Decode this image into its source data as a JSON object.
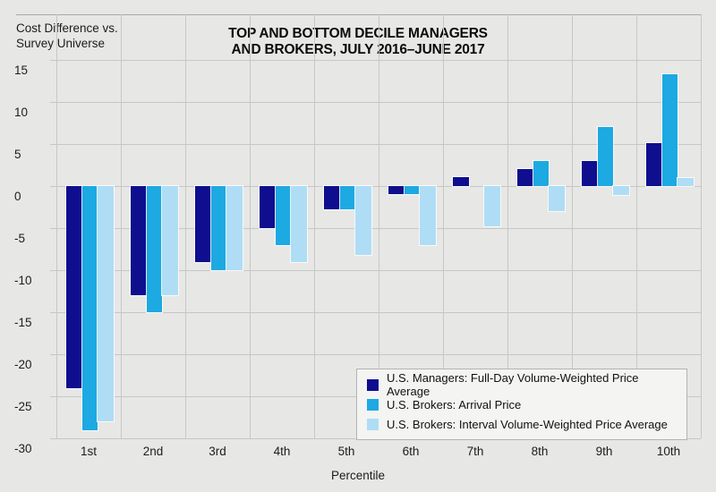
{
  "header": {
    "y_axis_caption_line1": "Cost Difference vs.",
    "y_axis_caption_line2": "Survey Universe"
  },
  "colors": {
    "background": "#e7e7e5",
    "gridline": "#c7c7c5",
    "top_rule": "#a9a9a7",
    "legend_background": "#f4f4f2",
    "legend_border": "#b3b3b1",
    "text": "#1c1c1c"
  },
  "chart_data": {
    "type": "bar",
    "title": "TOP AND BOTTOM DECILE MANAGERS AND BROKERS, JULY 2016–JUNE 2017",
    "title_lines": [
      "TOP AND BOTTOM DECILE MANAGERS",
      "AND BROKERS, JULY 2016–JUNE 2017"
    ],
    "ylabel": "Cost Difference vs. Survey Universe",
    "xlabel": "Percentile",
    "ylim": [
      -30,
      15
    ],
    "ytick_step": 5,
    "y_ticks": [
      15,
      10,
      5,
      0,
      -5,
      -10,
      -15,
      -20,
      -25,
      -30
    ],
    "y_tick_labels": [
      "15",
      "10",
      "5",
      "0",
      "-5",
      "-10",
      "-15",
      "-20",
      "-25",
      "-30"
    ],
    "grid": true,
    "legend_position": "inside-bottom-right",
    "categories": [
      "1st",
      "2nd",
      "3rd",
      "4th",
      "5th",
      "6th",
      "7th",
      "8th",
      "9th",
      "10th"
    ],
    "series": [
      {
        "name": "U.S. Managers: Full-Day Volume-Weighted Price Average",
        "color": "#0e0e8f",
        "values": [
          -24,
          -13,
          -9,
          -5,
          -2.8,
          -1,
          1.1,
          2,
          3,
          5.1
        ]
      },
      {
        "name": "U.S. Brokers: Arrival Price",
        "color": "#1da9e2",
        "values": [
          -29,
          -15,
          -10,
          -7,
          -2.8,
          -1,
          0,
          3,
          7,
          13.3
        ]
      },
      {
        "name": "U.S. Brokers: Interval Volume-Weighted Price Average",
        "color": "#afddf6",
        "values": [
          -28,
          -13,
          -10,
          -9,
          -8.2,
          -7,
          -4.8,
          -3,
          -1.1,
          1
        ]
      }
    ]
  }
}
